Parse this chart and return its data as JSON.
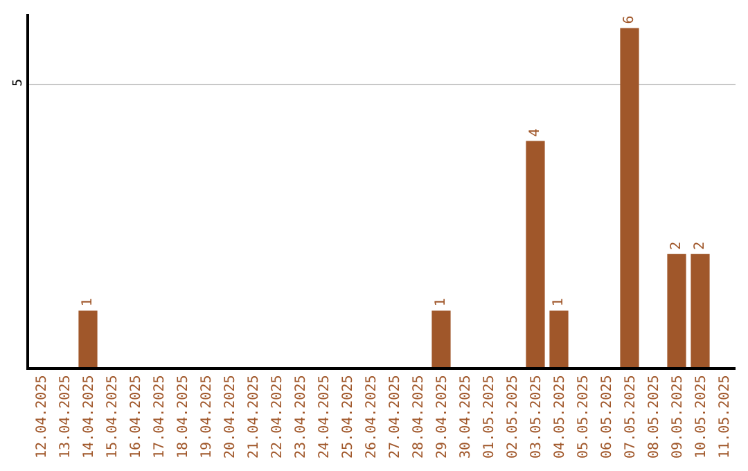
{
  "chart_data": {
    "type": "bar",
    "categories": [
      "12.04.2025",
      "13.04.2025",
      "14.04.2025",
      "15.04.2025",
      "16.04.2025",
      "17.04.2025",
      "18.04.2025",
      "19.04.2025",
      "20.04.2025",
      "21.04.2025",
      "22.04.2025",
      "23.04.2025",
      "24.04.2025",
      "25.04.2025",
      "26.04.2025",
      "27.04.2025",
      "28.04.2025",
      "29.04.2025",
      "30.04.2025",
      "01.05.2025",
      "02.05.2025",
      "03.05.2025",
      "04.05.2025",
      "05.05.2025",
      "06.05.2025",
      "07.05.2025",
      "08.05.2025",
      "09.05.2025",
      "10.05.2025",
      "11.05.2025"
    ],
    "values": [
      0,
      0,
      1,
      0,
      0,
      0,
      0,
      0,
      0,
      0,
      0,
      0,
      0,
      0,
      0,
      0,
      0,
      1,
      0,
      0,
      0,
      4,
      1,
      0,
      0,
      6,
      0,
      2,
      2,
      0
    ],
    "value_labels": [
      null,
      null,
      "1",
      null,
      null,
      null,
      null,
      null,
      null,
      null,
      null,
      null,
      null,
      null,
      null,
      null,
      null,
      "1",
      null,
      null,
      null,
      "4",
      "1",
      null,
      null,
      "6",
      null,
      "2",
      "2",
      null
    ],
    "color": "#a0572a",
    "ylim": [
      0,
      6.25
    ],
    "yticks": [
      5
    ],
    "grid": "y",
    "legend": false
  }
}
